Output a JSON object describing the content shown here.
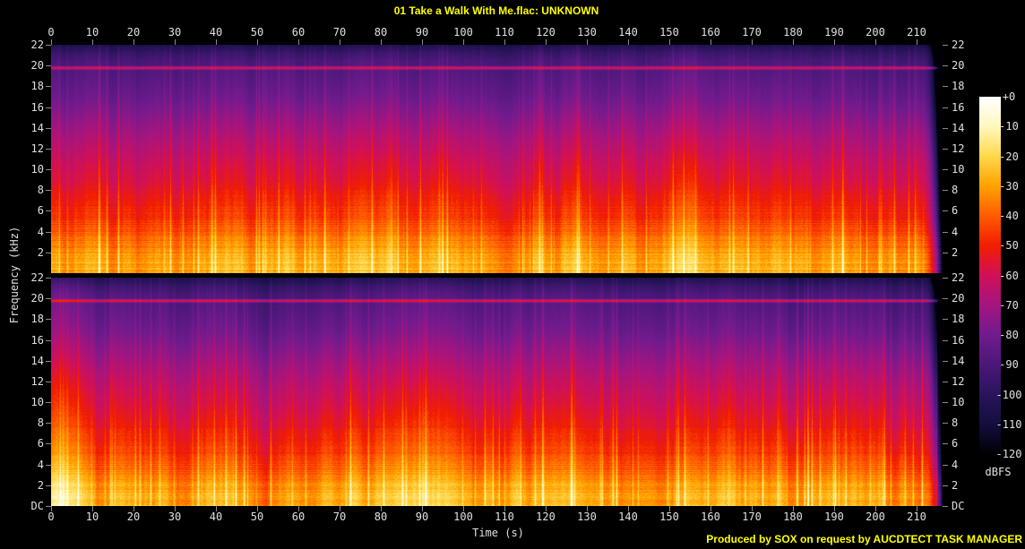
{
  "title": "01 Take a Walk With Me.flac: UNKNOWN",
  "footer": "Produced by SOX on request by AUCDTECT TASK MANAGER",
  "axes": {
    "time_label": "Time (s)",
    "time_ticks": [
      "0",
      "10",
      "20",
      "30",
      "40",
      "50",
      "60",
      "70",
      "80",
      "90",
      "100",
      "110",
      "120",
      "130",
      "140",
      "150",
      "160",
      "170",
      "180",
      "190",
      "200",
      "210"
    ],
    "freq_label": "Frequency (kHz)",
    "freq_ticks": [
      "22",
      "20",
      "18",
      "16",
      "14",
      "12",
      "10",
      "8",
      "6",
      "4",
      "2"
    ],
    "dc_label": "DC"
  },
  "colorbar": {
    "unit": "dBFS",
    "labels": [
      "+0",
      "-10",
      "-20",
      "-30",
      "-40",
      "-50",
      "-60",
      "-70",
      "-80",
      "-90",
      "-100",
      "-110",
      "-120"
    ],
    "palette": [
      {
        "db": 0,
        "color": "#ffffff"
      },
      {
        "db": -10,
        "color": "#fff7bd"
      },
      {
        "db": -20,
        "color": "#ffd84a"
      },
      {
        "db": -30,
        "color": "#ffa100"
      },
      {
        "db": -40,
        "color": "#ff5a00"
      },
      {
        "db": -50,
        "color": "#f11d00"
      },
      {
        "db": -60,
        "color": "#d01058"
      },
      {
        "db": -70,
        "color": "#a3157f"
      },
      {
        "db": -80,
        "color": "#701b8d"
      },
      {
        "db": -90,
        "color": "#4a1878"
      },
      {
        "db": -100,
        "color": "#2a145c"
      },
      {
        "db": -110,
        "color": "#140e3e"
      },
      {
        "db": -120,
        "color": "#000006"
      }
    ]
  },
  "colors": {
    "background": "#000000",
    "title_text": "#ffff00",
    "footer_text": "#ffff00",
    "axis_text": "#e0e0e0",
    "tick_mark": "#8a8a8a"
  },
  "chart_data": {
    "type": "heatmap",
    "subtype": "audio_spectrogram",
    "title": "01 Take a Walk With Me.flac: UNKNOWN",
    "channels": [
      "channel-1-top",
      "channel-2-bottom"
    ],
    "xlabel": "Time (s)",
    "x_range_s": [
      0,
      216
    ],
    "x_ticks_s": [
      0,
      10,
      20,
      30,
      40,
      50,
      60,
      70,
      80,
      90,
      100,
      110,
      120,
      130,
      140,
      150,
      160,
      170,
      180,
      190,
      200,
      210
    ],
    "ylabel": "Frequency (kHz)",
    "y_range_khz": [
      0,
      22
    ],
    "y_ticks_khz": [
      22,
      20,
      18,
      16,
      14,
      12,
      10,
      8,
      6,
      4,
      2,
      0
    ],
    "y_bottom_tick_label": "DC",
    "zlabel": "dBFS",
    "z_range_dbfs": [
      -120,
      0
    ],
    "z_ticks_dbfs": [
      0,
      -10,
      -20,
      -30,
      -40,
      -50,
      -60,
      -70,
      -80,
      -90,
      -100,
      -110,
      -120
    ],
    "legend_position": "right-colorbar",
    "grid": false,
    "spectral_profile": [
      {
        "khz": 22.0,
        "dbfs": -104
      },
      {
        "khz": 21.3,
        "dbfs": -95
      },
      {
        "khz": 20.5,
        "dbfs": -89
      },
      {
        "khz": 19.0,
        "dbfs": -85
      },
      {
        "khz": 17.0,
        "dbfs": -80
      },
      {
        "khz": 15.0,
        "dbfs": -73
      },
      {
        "khz": 13.0,
        "dbfs": -66
      },
      {
        "khz": 11.0,
        "dbfs": -60
      },
      {
        "khz": 9.0,
        "dbfs": -55
      },
      {
        "khz": 7.0,
        "dbfs": -49
      },
      {
        "khz": 5.0,
        "dbfs": -43
      },
      {
        "khz": 3.5,
        "dbfs": -36
      },
      {
        "khz": 2.0,
        "dbfs": -29
      },
      {
        "khz": 0.8,
        "dbfs": -26
      },
      {
        "khz": 0.0,
        "dbfs": -25
      }
    ],
    "tones": [
      {
        "khz": 19.8,
        "dbfs": -55,
        "note": "persistent narrowband tone across entire track, both channels"
      }
    ],
    "observations": [
      "Energy strongest below ~4 kHz (orange/yellow, ~ -25 to -36 dBFS)",
      "Level falls smoothly with frequency to ~ -85/-95 dBFS above 19 kHz (purple/indigo)",
      "Dense vertical transient striations (percussive hits) across the whole track",
      "Spectral content extends to the full 22 kHz bandwidth",
      "Audio ends at about 215 s with a rapid fade to silence at the right edge",
      "Both channels are visually nearly identical (stereo)"
    ]
  }
}
